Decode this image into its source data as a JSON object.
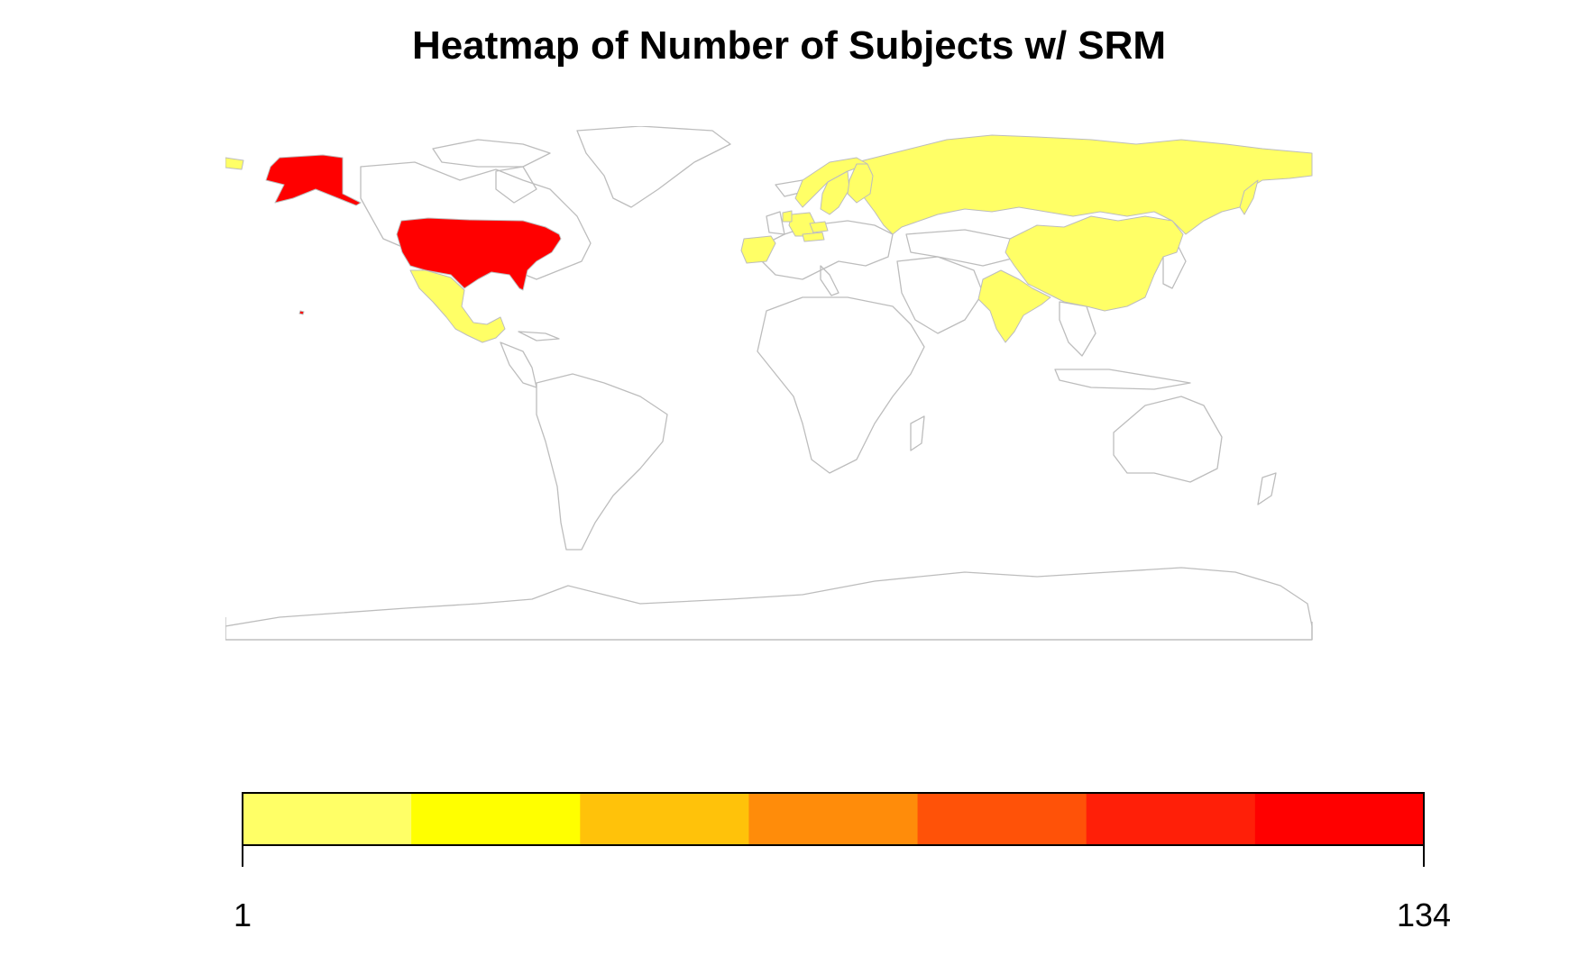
{
  "title": "Heatmap of Number of Subjects w/ SRM",
  "colors": {
    "border": "#bdbdbd",
    "unfilled": "#ffffff",
    "scale": [
      "#ffff66",
      "#ffff00",
      "#ffc20a",
      "#ff8c0a",
      "#ff5208",
      "#ff1f08",
      "#ff0000"
    ]
  },
  "chart_data": {
    "type": "heatmap",
    "title": "Heatmap of Number of Subjects w/ SRM",
    "legend": {
      "min_label": "1",
      "max_label": "134",
      "placement": "bottom",
      "bins": 7
    },
    "regions": [
      {
        "name": "United States",
        "bin": 6
      },
      {
        "name": "Mexico",
        "bin": 0
      },
      {
        "name": "Russia",
        "bin": 0
      },
      {
        "name": "China",
        "bin": 0
      },
      {
        "name": "India",
        "bin": 0
      },
      {
        "name": "Spain",
        "bin": 0
      },
      {
        "name": "Norway",
        "bin": 0
      },
      {
        "name": "Sweden",
        "bin": 0
      },
      {
        "name": "Finland",
        "bin": 0
      },
      {
        "name": "Germany",
        "bin": 0
      },
      {
        "name": "Netherlands",
        "bin": 0
      },
      {
        "name": "Czechia",
        "bin": 0
      },
      {
        "name": "Austria",
        "bin": 0
      }
    ]
  }
}
